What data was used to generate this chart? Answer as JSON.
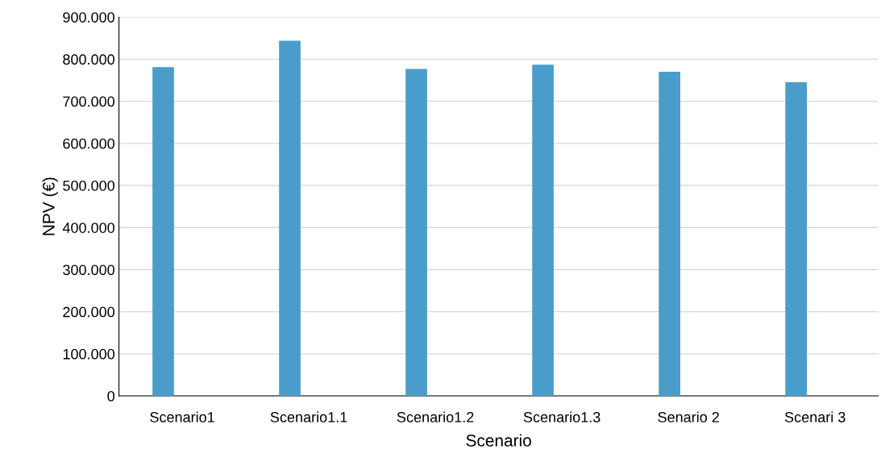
{
  "chart_data": {
    "type": "bar",
    "xlabel": "Scenario",
    "ylabel": "NPV (€)",
    "categories": [
      "Scenario1",
      "Scenario1.1",
      "Scenario1.2",
      "Scenario1.3",
      "Senario 2",
      "Scenari 3"
    ],
    "series": [
      {
        "color": "#4a9dcb",
        "values": [
          781,
          844,
          777,
          787,
          770,
          745
        ]
      }
    ],
    "ylim": [
      0,
      900
    ],
    "yticks": [
      0,
      {
        "value": 100,
        "label": "100.000"
      },
      {
        "value": 200,
        "label": "200.000"
      },
      {
        "value": 300,
        "label": "300.000"
      },
      {
        "value": 400,
        "label": "400.000"
      },
      {
        "value": 500,
        "label": "500.000"
      },
      {
        "value": 600,
        "label": "600.000"
      },
      {
        "value": 700,
        "label": "700.000"
      },
      {
        "value": 800,
        "label": "800.000"
      },
      {
        "value": 900,
        "label": "900.000"
      }
    ],
    "grid": "y"
  }
}
